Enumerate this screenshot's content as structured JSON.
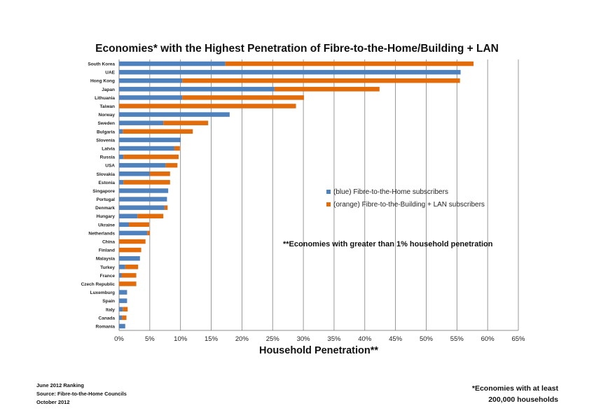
{
  "chart_data": {
    "type": "bar",
    "orientation": "horizontal",
    "stacked": true,
    "title": "Economies* with the Highest Penetration of Fibre-to-the-Home/Building + LAN",
    "xlabel": "Household Penetration**",
    "xlim": [
      0,
      65
    ],
    "xticks": [
      "0%",
      "5%",
      "10%",
      "15%",
      "20%",
      "25%",
      "30%",
      "35%",
      "40%",
      "45%",
      "50%",
      "55%",
      "60%",
      "65%"
    ],
    "grid": true,
    "categories": [
      "South Korea",
      "UAE",
      "Hong Kong",
      "Japan",
      "Lithuania",
      "Taiwan",
      "Norway",
      "Sweden",
      "Bulgaria",
      "Slovenia",
      "Latvia",
      "Russia",
      "USA",
      "Slovakia",
      "Estonia",
      "Singapore",
      "Portugal",
      "Denmark",
      "Hungary",
      "Ukraine",
      "Netherlands",
      "China",
      "Finland",
      "Malaysia",
      "Turkey",
      "France",
      "Czech Republic",
      "Luxemburg",
      "Spain",
      "Italy",
      "Canada",
      "Romania"
    ],
    "series": [
      {
        "name": "(blue) Fibre-to-the-Home subscribers",
        "color": "#4f81bd",
        "values": [
          17.3,
          55.6,
          10.3,
          25.3,
          10.3,
          0,
          18.0,
          7.2,
          0.6,
          10.0,
          9.0,
          0.7,
          7.6,
          5.0,
          0.7,
          8.0,
          7.8,
          7.4,
          3.0,
          1.6,
          4.6,
          0,
          0,
          3.4,
          1.0,
          0.4,
          0,
          1.3,
          1.3,
          0.6,
          0.5,
          1.0
        ]
      },
      {
        "name": "(orange) Fibre-to-the-Building + LAN subscribers",
        "color": "#e36c0a",
        "values": [
          40.4,
          0,
          45.2,
          17.1,
          19.8,
          28.8,
          0,
          7.3,
          11.4,
          0,
          0.9,
          9.0,
          1.9,
          3.3,
          7.6,
          0,
          0,
          0.5,
          4.2,
          3.3,
          0.4,
          4.3,
          3.6,
          0,
          2.1,
          2.4,
          2.8,
          0,
          0,
          0.8,
          0.7,
          0
        ]
      }
    ],
    "legend_position": "right"
  },
  "note": "**Economies with greater than 1% household penetration",
  "footer_left": [
    "June 2012 Ranking",
    "Source: Fibre-to-the-Home Councils",
    "October 2012"
  ],
  "footer_right": [
    "*Economies with at least",
    "200,000 households"
  ]
}
